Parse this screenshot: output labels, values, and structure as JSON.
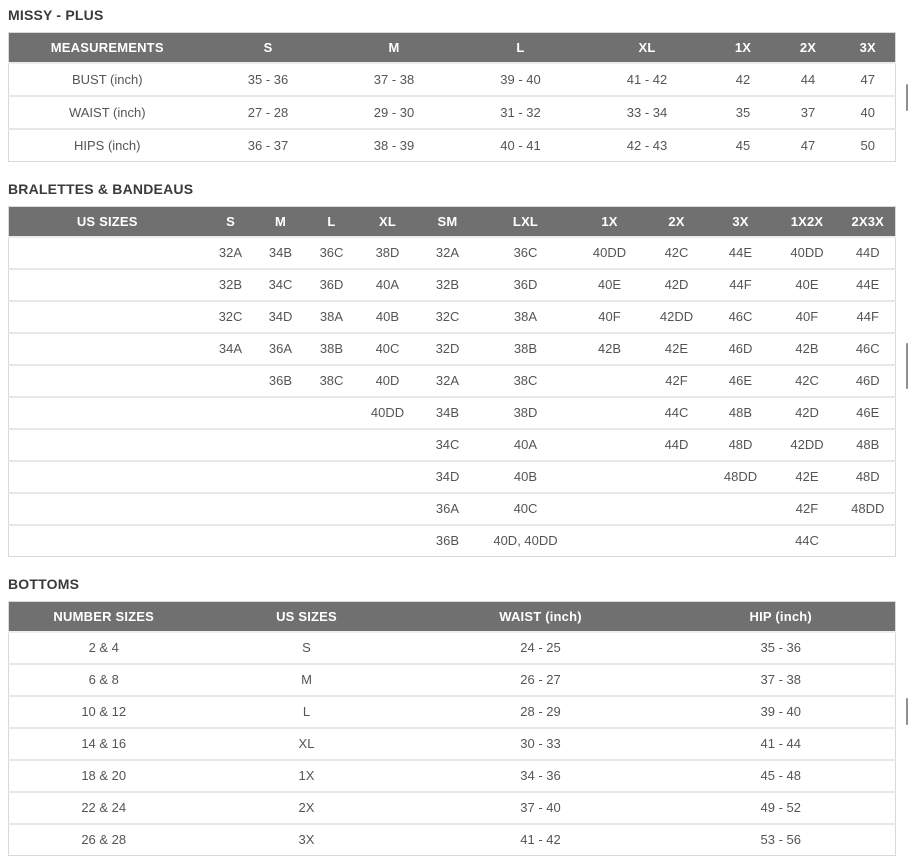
{
  "colors": {
    "header_bg": "#707070",
    "header_text": "#ffffff",
    "title_text": "#3a3a3a",
    "body_text": "#555555",
    "row_border": "#e7e7e7",
    "table_border": "#d9d9d9",
    "scrollbar": "#8f8f8f"
  },
  "tables": [
    {
      "title": "MISSY - PLUS",
      "columns": [
        "MEASUREMENTS",
        "S",
        "M",
        "L",
        "XL",
        "1X",
        "2X",
        "3X"
      ],
      "rows": [
        [
          "BUST (inch)",
          "35 - 36",
          "37 - 38",
          "39 - 40",
          "41 - 42",
          "42",
          "44",
          "47"
        ],
        [
          "WAIST (inch)",
          "27 - 28",
          "29 - 30",
          "31 - 32",
          "33 - 34",
          "35",
          "37",
          "40"
        ],
        [
          "HIPS (inch)",
          "36 - 37",
          "38 - 39",
          "40 - 41",
          "42 - 43",
          "45",
          "47",
          "50"
        ]
      ]
    },
    {
      "title": "BRALETTES & BANDEAUS",
      "columns": [
        "US SIZES",
        "S",
        "M",
        "L",
        "XL",
        "SM",
        "LXL",
        "1X",
        "2X",
        "3X",
        "1X2X",
        "2X3X"
      ],
      "rows": [
        [
          "",
          "32A",
          "34B",
          "36C",
          "38D",
          "32A",
          "36C",
          "40DD",
          "42C",
          "44E",
          "40DD",
          "44D"
        ],
        [
          "",
          "32B",
          "34C",
          "36D",
          "40A",
          "32B",
          "36D",
          "40E",
          "42D",
          "44F",
          "40E",
          "44E"
        ],
        [
          "",
          "32C",
          "34D",
          "38A",
          "40B",
          "32C",
          "38A",
          "40F",
          "42DD",
          "46C",
          "40F",
          "44F"
        ],
        [
          "",
          "34A",
          "36A",
          "38B",
          "40C",
          "32D",
          "38B",
          "42B",
          "42E",
          "46D",
          "42B",
          "46C"
        ],
        [
          "",
          "",
          "36B",
          "38C",
          "40D",
          "32A",
          "38C",
          "",
          "42F",
          "46E",
          "42C",
          "46D"
        ],
        [
          "",
          "",
          "",
          "",
          "40DD",
          "34B",
          "38D",
          "",
          "44C",
          "48B",
          "42D",
          "46E"
        ],
        [
          "",
          "",
          "",
          "",
          "",
          "34C",
          "40A",
          "",
          "44D",
          "48D",
          "42DD",
          "48B"
        ],
        [
          "",
          "",
          "",
          "",
          "",
          "34D",
          "40B",
          "",
          "",
          "48DD",
          "42E",
          "48D"
        ],
        [
          "",
          "",
          "",
          "",
          "",
          "36A",
          "40C",
          "",
          "",
          "",
          "42F",
          "48DD"
        ],
        [
          "",
          "",
          "",
          "",
          "",
          "36B",
          "40D, 40DD",
          "",
          "",
          "",
          "44C",
          ""
        ]
      ]
    },
    {
      "title": "BOTTOMS",
      "columns": [
        "NUMBER SIZES",
        "US SIZES",
        "WAIST (inch)",
        "HIP (inch)"
      ],
      "rows": [
        [
          "2 & 4",
          "S",
          "24 - 25",
          "35 - 36"
        ],
        [
          "6 & 8",
          "M",
          "26 - 27",
          "37 - 38"
        ],
        [
          "10 & 12",
          "L",
          "28 - 29",
          "39 - 40"
        ],
        [
          "14 & 16",
          "XL",
          "30 - 33",
          "41 - 44"
        ],
        [
          "18 & 20",
          "1X",
          "34 - 36",
          "45 - 48"
        ],
        [
          "22 & 24",
          "2X",
          "37 - 40",
          "49 - 52"
        ],
        [
          "26 & 28",
          "3X",
          "41 - 42",
          "53 - 56"
        ]
      ]
    }
  ]
}
